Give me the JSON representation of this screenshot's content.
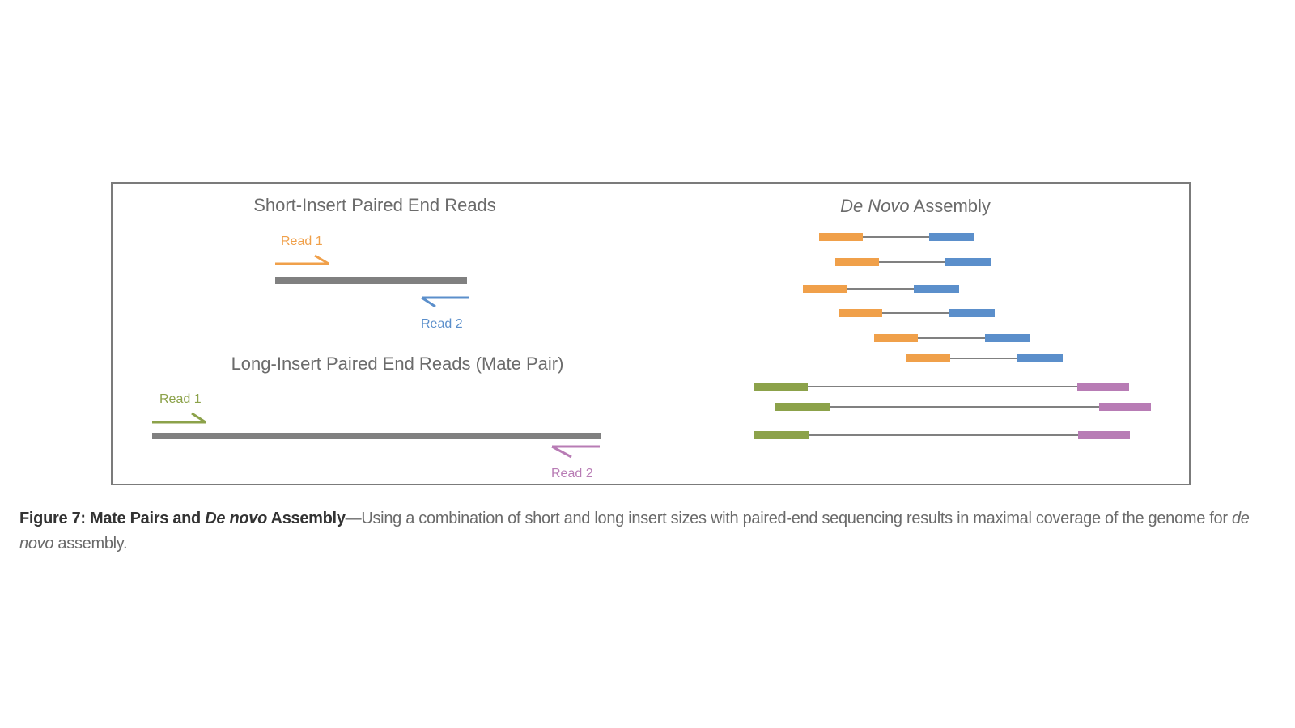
{
  "left_panel": {
    "short_title": "Short-Insert Paired End Reads",
    "short_read1": "Read 1",
    "short_read2": "Read 2",
    "long_title": "Long-Insert Paired End Reads (Mate Pair)",
    "long_read1": "Read 1",
    "long_read2": "Read 2"
  },
  "right_panel": {
    "title_italic": "De Novo",
    "title_rest": " Assembly",
    "short_pairs": 6,
    "long_pairs": 3
  },
  "caption": {
    "label_bold_1": "Figure 7: Mate Pairs and ",
    "label_bold_italic": "De novo",
    "label_bold_2": " Assembly",
    "text_1": "—Using a combination of short and long insert sizes with paired-end sequencing results in maximal coverage of the genome for ",
    "text_italic": "de novo",
    "text_2": " assembly."
  },
  "colors": {
    "frame": "#7b7b7b",
    "insert_gray": "#808080",
    "read1_short": "#f0a04a",
    "read2_short": "#5b8fcb",
    "read1_long": "#8ca24a",
    "read2_long": "#b87cb5",
    "title_text": "#6b6b6b"
  }
}
